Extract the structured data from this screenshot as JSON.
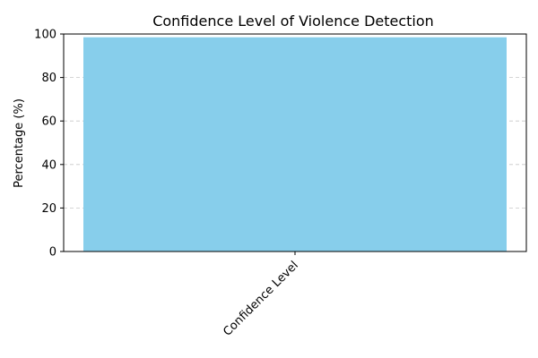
{
  "chart_data": {
    "type": "bar",
    "title": "Confidence Level of Violence Detection",
    "xlabel": "",
    "ylabel": "Percentage (%)",
    "categories": [
      "Confidence Level"
    ],
    "values": [
      98.5
    ],
    "ylim": [
      0,
      100
    ],
    "yticks": [
      0,
      20,
      40,
      60,
      80,
      100
    ],
    "grid": "y-dashed",
    "bar_color": "#87CEEB",
    "xtick_rotation": 45
  }
}
